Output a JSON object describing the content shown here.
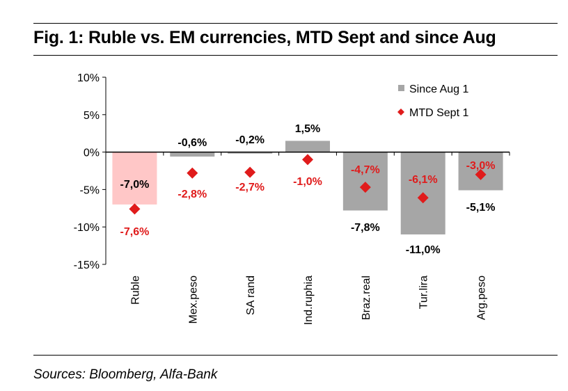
{
  "title": "Fig. 1: Ruble vs. EM currencies, MTD Sept and since Aug",
  "source": "Sources: Bloomberg, Alfa-Bank",
  "chart_data": {
    "type": "bar",
    "categories": [
      "Ruble",
      "Mex.peso",
      "SA rand",
      "Ind.ruphia",
      "Braz.real",
      "Tur.lira",
      "Arg.peso"
    ],
    "series": [
      {
        "name": "Since Aug 1",
        "kind": "bar",
        "values": [
          -7.0,
          -0.6,
          -0.2,
          1.5,
          -7.8,
          -11.0,
          -5.1
        ],
        "labels": [
          "-7,0%",
          "-0,6%",
          "-0,2%",
          "1,5%",
          "-7,8%",
          "-11,0%",
          "-5,1%"
        ],
        "color": "#a6a6a6",
        "highlight_color": "#ffc7c7"
      },
      {
        "name": "MTD Sept 1",
        "kind": "marker",
        "values": [
          -7.6,
          -2.8,
          -2.7,
          -1.0,
          -4.7,
          -6.1,
          -3.0
        ],
        "labels": [
          "-7,6%",
          "-2,8%",
          "-2,7%",
          "-1,0%",
          "-4,7%",
          "-6,1%",
          "-3,0%"
        ],
        "color": "#e01b1b"
      }
    ],
    "yticks": [
      "10%",
      "5%",
      "0%",
      "-5%",
      "-10%",
      "-15%"
    ],
    "ytick_values": [
      10,
      5,
      0,
      -5,
      -10,
      -15
    ],
    "ylim": [
      -15,
      10
    ],
    "legend_placement": "top-right",
    "grid": false
  }
}
